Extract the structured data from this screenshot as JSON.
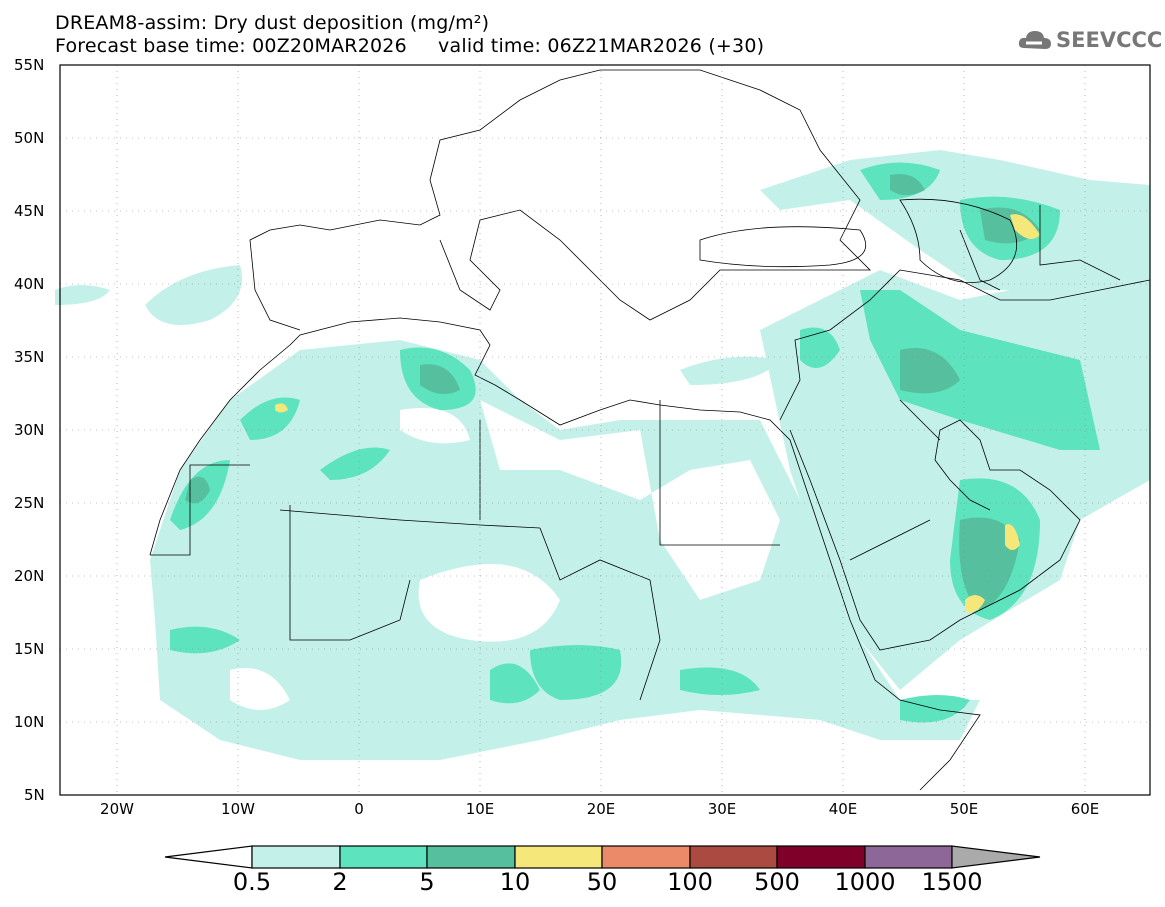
{
  "title": {
    "line1": "DREAM8-assim: Dry dust deposition (mg/m²)",
    "line2": "Forecast base time: 00Z20MAR2026     valid time: 06Z21MAR2026 (+30)"
  },
  "logo": {
    "text": "SEEVCCC",
    "icon": "cloud-icon"
  },
  "axes": {
    "lat_labels": [
      "55N",
      "50N",
      "45N",
      "40N",
      "35N",
      "30N",
      "25N",
      "20N",
      "15N",
      "10N",
      "5N"
    ],
    "lon_labels": [
      "20W",
      "10W",
      "0",
      "10E",
      "20E",
      "30E",
      "40E",
      "50E",
      "60E"
    ]
  },
  "colorbar": {
    "labels": [
      "0.5",
      "2",
      "5",
      "10",
      "50",
      "100",
      "500",
      "1000",
      "1500"
    ],
    "colors": [
      "#c3f1ea",
      "#5de3be",
      "#55bf9e",
      "#f5e77a",
      "#ea8a68",
      "#ab4a40",
      "#7f0029",
      "#8d6798",
      "#aaaaaa"
    ]
  }
}
